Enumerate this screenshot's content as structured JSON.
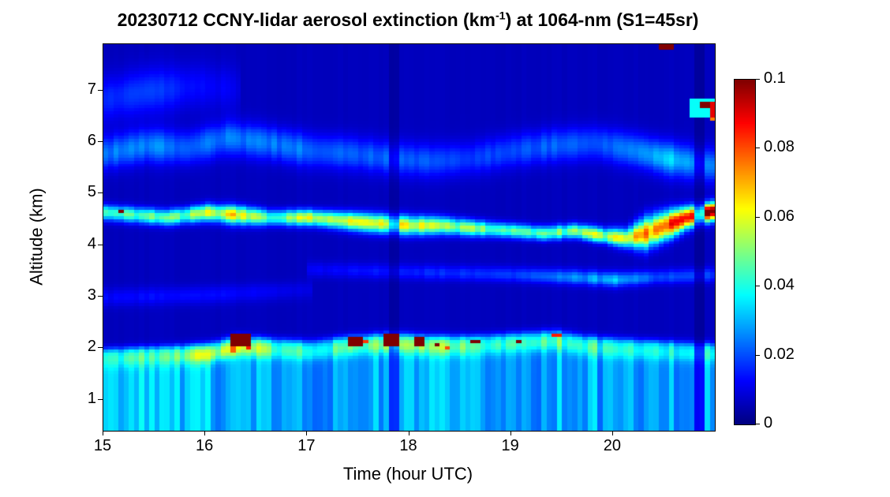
{
  "chart_data": {
    "type": "heatmap",
    "title_prefix": "20230712 CCNY-lidar aerosol extinction (km",
    "title_sup": "-1",
    "title_suffix": ") at 1064-nm (S1=45sr)",
    "xlabel": "Time (hour UTC)",
    "ylabel": "Altitude (km)",
    "x_range": [
      15,
      21
    ],
    "y_range": [
      0.4,
      7.9
    ],
    "x_ticks": [
      15,
      16,
      17,
      18,
      19,
      20
    ],
    "y_ticks": [
      1,
      2,
      3,
      4,
      5,
      6,
      7
    ],
    "colormap": "jet",
    "colorbar": {
      "min": 0,
      "max": 0.1,
      "tick_values": [
        0,
        0.02,
        0.04,
        0.06,
        0.08,
        0.1
      ],
      "tick_labels": [
        "0",
        "0.02",
        "0.04",
        "0.06",
        "0.08",
        "0.1"
      ]
    },
    "background_value": 0.006,
    "time_bins_per_hour": 20,
    "alt_bin_km": 0.06,
    "boundary_layer": {
      "t": [
        15.0,
        15.3,
        15.6,
        16.0,
        16.3,
        16.6,
        17.0,
        17.4,
        17.8,
        18.2,
        18.6,
        19.0,
        19.4,
        19.7,
        20.0,
        20.5,
        21.0
      ],
      "top": [
        1.85,
        1.88,
        1.9,
        1.95,
        2.1,
        2.05,
        2.0,
        2.1,
        2.15,
        2.1,
        2.1,
        2.15,
        2.2,
        2.1,
        2.05,
        2.0,
        1.95
      ],
      "interior": [
        0.024,
        0.03,
        0.026,
        0.024,
        0.024,
        0.022,
        0.021,
        0.021,
        0.022,
        0.022,
        0.021,
        0.021,
        0.022,
        0.022,
        0.022,
        0.021,
        0.021
      ],
      "cap": [
        0.01,
        0.012,
        0.012,
        0.026,
        0.028,
        0.018,
        0.014,
        0.02,
        0.022,
        0.02,
        0.016,
        0.016,
        0.018,
        0.014,
        0.012,
        0.012,
        0.01
      ]
    },
    "layers": [
      {
        "name": "elevated-aerosol-layer",
        "t": [
          15.0,
          15.3,
          15.6,
          16.0,
          16.3,
          16.6,
          17.0,
          17.3,
          17.6,
          18.0,
          18.3,
          18.6,
          19.0,
          19.3,
          19.6,
          19.9,
          20.1,
          20.3,
          20.5,
          20.7,
          20.9,
          21.0
        ],
        "alt": [
          4.6,
          4.55,
          4.5,
          4.6,
          4.55,
          4.5,
          4.5,
          4.45,
          4.4,
          4.35,
          4.35,
          4.3,
          4.25,
          4.2,
          4.25,
          4.15,
          4.1,
          4.2,
          4.35,
          4.5,
          4.6,
          4.65
        ],
        "i": [
          0.042,
          0.038,
          0.04,
          0.05,
          0.058,
          0.04,
          0.05,
          0.052,
          0.055,
          0.055,
          0.05,
          0.045,
          0.04,
          0.04,
          0.045,
          0.05,
          0.058,
          0.068,
          0.08,
          0.07,
          0.088,
          0.08
        ],
        "w": [
          0.1,
          0.1,
          0.1,
          0.11,
          0.12,
          0.1,
          0.1,
          0.11,
          0.12,
          0.12,
          0.11,
          0.1,
          0.09,
          0.09,
          0.09,
          0.1,
          0.12,
          0.2,
          0.18,
          0.14,
          0.12,
          0.12
        ]
      },
      {
        "name": "upper-aerosol-layer",
        "t": [
          15.0,
          15.4,
          15.8,
          16.2,
          16.6,
          17.0,
          17.4,
          17.8,
          18.2,
          18.6,
          19.0,
          19.4,
          19.8,
          20.2,
          20.5,
          20.8,
          21.0
        ],
        "alt": [
          5.75,
          5.9,
          5.85,
          6.05,
          5.95,
          5.8,
          5.75,
          5.65,
          5.6,
          5.65,
          5.8,
          5.9,
          5.95,
          5.8,
          5.65,
          5.55,
          5.5
        ],
        "i": [
          0.018,
          0.02,
          0.016,
          0.018,
          0.02,
          0.016,
          0.014,
          0.016,
          0.014,
          0.012,
          0.014,
          0.016,
          0.014,
          0.02,
          0.028,
          0.022,
          0.018
        ],
        "w": 0.22
      },
      {
        "name": "mid-faint-layer",
        "t": [
          17.0,
          18.0,
          19.0,
          19.6,
          20.0,
          20.4,
          21.0
        ],
        "alt": [
          3.5,
          3.45,
          3.4,
          3.35,
          3.3,
          3.35,
          3.4
        ],
        "i": [
          0.006,
          0.009,
          0.012,
          0.02,
          0.024,
          0.014,
          0.011
        ],
        "w": 0.1
      },
      {
        "name": "low-faint-layer",
        "t": [
          15.0,
          16.0,
          17.0
        ],
        "alt": [
          2.95,
          3.0,
          3.1
        ],
        "i": [
          0.007,
          0.007,
          0.004
        ],
        "w": 0.12
      },
      {
        "name": "high-faint-layer",
        "t": [
          15.0,
          15.4,
          15.9,
          16.3
        ],
        "alt": [
          6.8,
          6.95,
          7.05,
          7.0
        ],
        "i": [
          0.01,
          0.013,
          0.008,
          0.004
        ],
        "w": 0.3
      }
    ],
    "spots": [
      {
        "t": 15.16,
        "alt": 4.62,
        "w": 0.07,
        "h": 0.08,
        "v": 0.1
      },
      {
        "t": 16.3,
        "alt": 2.12,
        "w": 0.2,
        "h": 0.24,
        "v": 0.1
      },
      {
        "t": 16.25,
        "alt": 1.96,
        "w": 0.1,
        "h": 0.1,
        "v": 0.078
      },
      {
        "t": 16.4,
        "alt": 2.0,
        "w": 0.06,
        "h": 0.08,
        "v": 0.085
      },
      {
        "t": 17.44,
        "alt": 2.1,
        "w": 0.12,
        "h": 0.13,
        "v": 0.1
      },
      {
        "t": 17.56,
        "alt": 2.12,
        "w": 0.05,
        "h": 0.07,
        "v": 0.082
      },
      {
        "t": 17.8,
        "alt": 2.1,
        "w": 0.12,
        "h": 0.24,
        "v": 0.1
      },
      {
        "t": 18.07,
        "alt": 2.1,
        "w": 0.11,
        "h": 0.15,
        "v": 0.1
      },
      {
        "t": 18.25,
        "alt": 2.05,
        "w": 0.09,
        "h": 0.1,
        "v": 0.1
      },
      {
        "t": 18.33,
        "alt": 1.98,
        "w": 0.05,
        "h": 0.06,
        "v": 0.08
      },
      {
        "t": 18.62,
        "alt": 2.1,
        "w": 0.07,
        "h": 0.07,
        "v": 0.1
      },
      {
        "t": 19.05,
        "alt": 2.12,
        "w": 0.09,
        "h": 0.08,
        "v": 0.1
      },
      {
        "t": 19.42,
        "alt": 2.22,
        "w": 0.08,
        "h": 0.06,
        "v": 0.085
      },
      {
        "t": 20.5,
        "alt": 7.84,
        "w": 0.12,
        "h": 0.12,
        "v": 0.1
      },
      {
        "t": 20.9,
        "alt": 6.62,
        "w": 0.3,
        "h": 0.4,
        "v": 0.038
      },
      {
        "t": 20.88,
        "alt": 6.7,
        "w": 0.14,
        "h": 0.12,
        "v": 0.1
      },
      {
        "t": 20.97,
        "alt": 6.62,
        "w": 0.06,
        "h": 0.3,
        "v": 0.09
      },
      {
        "t": 20.93,
        "alt": 6.45,
        "w": 0.05,
        "h": 0.08,
        "v": 0.075
      }
    ],
    "stripes": [
      {
        "t0": 17.76,
        "t1": 17.88,
        "factor": 0.55
      },
      {
        "t0": 20.8,
        "t1": 20.9,
        "factor": 0.5
      }
    ]
  }
}
